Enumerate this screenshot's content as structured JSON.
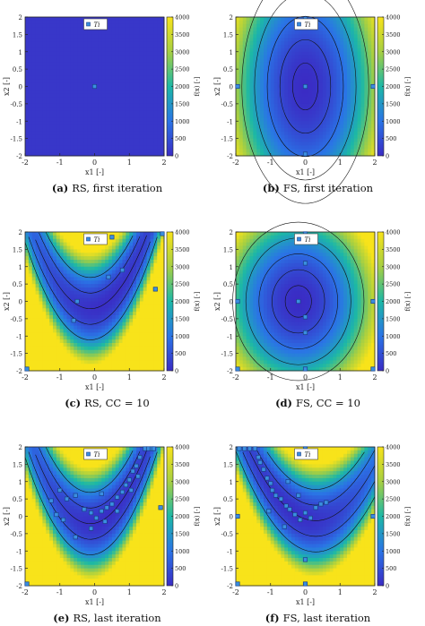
{
  "colors": {
    "low": "#3a2cc4",
    "mid": "#1cb8a6",
    "high": "#f8e31a",
    "contour": "#111111",
    "sample_fill": "#3a8fe0",
    "sample_stroke": "#1b3f86"
  },
  "colorbar": {
    "label": "f(x) [-]",
    "ticks": [
      "0",
      "500",
      "1000",
      "1500",
      "2000",
      "2500",
      "3000",
      "3500",
      "4000"
    ]
  },
  "legend_label": "Ti",
  "axes": {
    "xlabel": "x1 [-]",
    "ylabel": "x2 [-]",
    "x_ticks": [
      "-2",
      "-1",
      "0",
      "1",
      "2"
    ],
    "y_ticks": [
      "2",
      "1.5",
      "1",
      "0.5",
      "0",
      "-0.5",
      "-1",
      "-1.5",
      "-2"
    ]
  },
  "chart_data": [
    {
      "id": "a",
      "type": "heatmap",
      "caption_letter": "(a)",
      "caption_text": "RS, first iteration",
      "field": "flat",
      "xlim": [
        -2,
        2
      ],
      "ylim": [
        -2,
        2
      ],
      "zlim": [
        0,
        4000
      ],
      "samples": [
        [
          0,
          0
        ]
      ]
    },
    {
      "id": "b",
      "type": "heatmap",
      "caption_letter": "(b)",
      "caption_text": "FS, first iteration",
      "field": "ellipse",
      "xlim": [
        -2,
        2
      ],
      "ylim": [
        -2,
        2
      ],
      "zlim": [
        0,
        4000
      ],
      "samples": [
        [
          0,
          0
        ],
        [
          0,
          2
        ],
        [
          0,
          -2
        ],
        [
          -2,
          0
        ],
        [
          2,
          0
        ]
      ]
    },
    {
      "id": "c",
      "type": "heatmap",
      "caption_letter": "(c)",
      "caption_text": "RS, CC = 10",
      "field": "banana",
      "xlim": [
        -2,
        2
      ],
      "ylim": [
        -2,
        2
      ],
      "zlim": [
        0,
        4000
      ],
      "samples": [
        [
          -0.5,
          0
        ],
        [
          -0.6,
          -0.55
        ],
        [
          0.4,
          0.7
        ],
        [
          0.8,
          0.9
        ],
        [
          0.5,
          1.85
        ],
        [
          1.75,
          0.35
        ],
        [
          2,
          2
        ],
        [
          -2,
          -2
        ]
      ]
    },
    {
      "id": "d",
      "type": "heatmap",
      "caption_letter": "(d)",
      "caption_text": "FS, CC = 10",
      "field": "bowl",
      "xlim": [
        -2,
        2
      ],
      "ylim": [
        -2,
        2
      ],
      "zlim": [
        0,
        4000
      ],
      "samples": [
        [
          -0.2,
          0
        ],
        [
          0,
          2
        ],
        [
          0,
          -2
        ],
        [
          -2,
          0
        ],
        [
          2,
          0
        ],
        [
          0,
          1.1
        ],
        [
          0,
          -0.45
        ],
        [
          0,
          -0.9
        ],
        [
          -2,
          -2
        ],
        [
          2,
          -2
        ]
      ]
    },
    {
      "id": "e",
      "type": "heatmap",
      "caption_letter": "(e)",
      "caption_text": "RS, last iteration",
      "field": "banana",
      "xlim": [
        -2,
        2
      ],
      "ylim": [
        -2,
        2
      ],
      "zlim": [
        0,
        4000
      ],
      "samples": [
        [
          -1.25,
          0.45
        ],
        [
          -1.0,
          0.75
        ],
        [
          -0.8,
          0.5
        ],
        [
          -0.55,
          0.6
        ],
        [
          -0.3,
          0.2
        ],
        [
          -0.1,
          0.1
        ],
        [
          0.05,
          -0.05
        ],
        [
          0.2,
          0.15
        ],
        [
          0.35,
          0.25
        ],
        [
          0.5,
          0.35
        ],
        [
          0.65,
          0.55
        ],
        [
          0.8,
          0.7
        ],
        [
          0.9,
          0.9
        ],
        [
          1.0,
          1.05
        ],
        [
          1.1,
          1.3
        ],
        [
          1.2,
          1.45
        ],
        [
          1.3,
          1.7
        ],
        [
          1.45,
          1.95
        ],
        [
          1.55,
          2.0
        ],
        [
          1.65,
          2.0
        ],
        [
          1.7,
          1.95
        ],
        [
          1.25,
          1.15
        ],
        [
          1.05,
          0.75
        ],
        [
          0.65,
          0.15
        ],
        [
          0.3,
          -0.15
        ],
        [
          -0.1,
          -0.35
        ],
        [
          -0.55,
          -0.6
        ],
        [
          -0.9,
          -0.1
        ],
        [
          -1.1,
          0.05
        ],
        [
          0.2,
          0.65
        ],
        [
          1.9,
          0.25
        ],
        [
          -2,
          -2
        ]
      ]
    },
    {
      "id": "f",
      "type": "heatmap",
      "caption_letter": "(f)",
      "caption_text": "FS, last iteration",
      "field": "banana_mirror",
      "xlim": [
        -2,
        2
      ],
      "ylim": [
        -2,
        2
      ],
      "zlim": [
        0,
        4000
      ],
      "samples": [
        [
          -1.9,
          2.0
        ],
        [
          -1.75,
          2.0
        ],
        [
          -1.6,
          2.0
        ],
        [
          -1.45,
          1.95
        ],
        [
          -1.35,
          1.7
        ],
        [
          -1.3,
          1.55
        ],
        [
          -1.2,
          1.35
        ],
        [
          -1.1,
          1.1
        ],
        [
          -1.0,
          0.95
        ],
        [
          -0.95,
          0.75
        ],
        [
          -0.85,
          0.6
        ],
        [
          -0.7,
          0.5
        ],
        [
          -0.55,
          0.3
        ],
        [
          -0.45,
          0.2
        ],
        [
          -0.3,
          0.05
        ],
        [
          -0.15,
          -0.1
        ],
        [
          0.0,
          0.1
        ],
        [
          0.15,
          -0.05
        ],
        [
          0.3,
          0.25
        ],
        [
          0.45,
          0.35
        ],
        [
          0.6,
          0.4
        ],
        [
          -0.2,
          0.6
        ],
        [
          -1.05,
          0.15
        ],
        [
          -0.5,
          1.0
        ],
        [
          0,
          2
        ],
        [
          0,
          -2
        ],
        [
          -2,
          0
        ],
        [
          2,
          0
        ],
        [
          0,
          -1.25
        ],
        [
          -0.6,
          -0.3
        ],
        [
          -2,
          -2
        ]
      ]
    }
  ]
}
